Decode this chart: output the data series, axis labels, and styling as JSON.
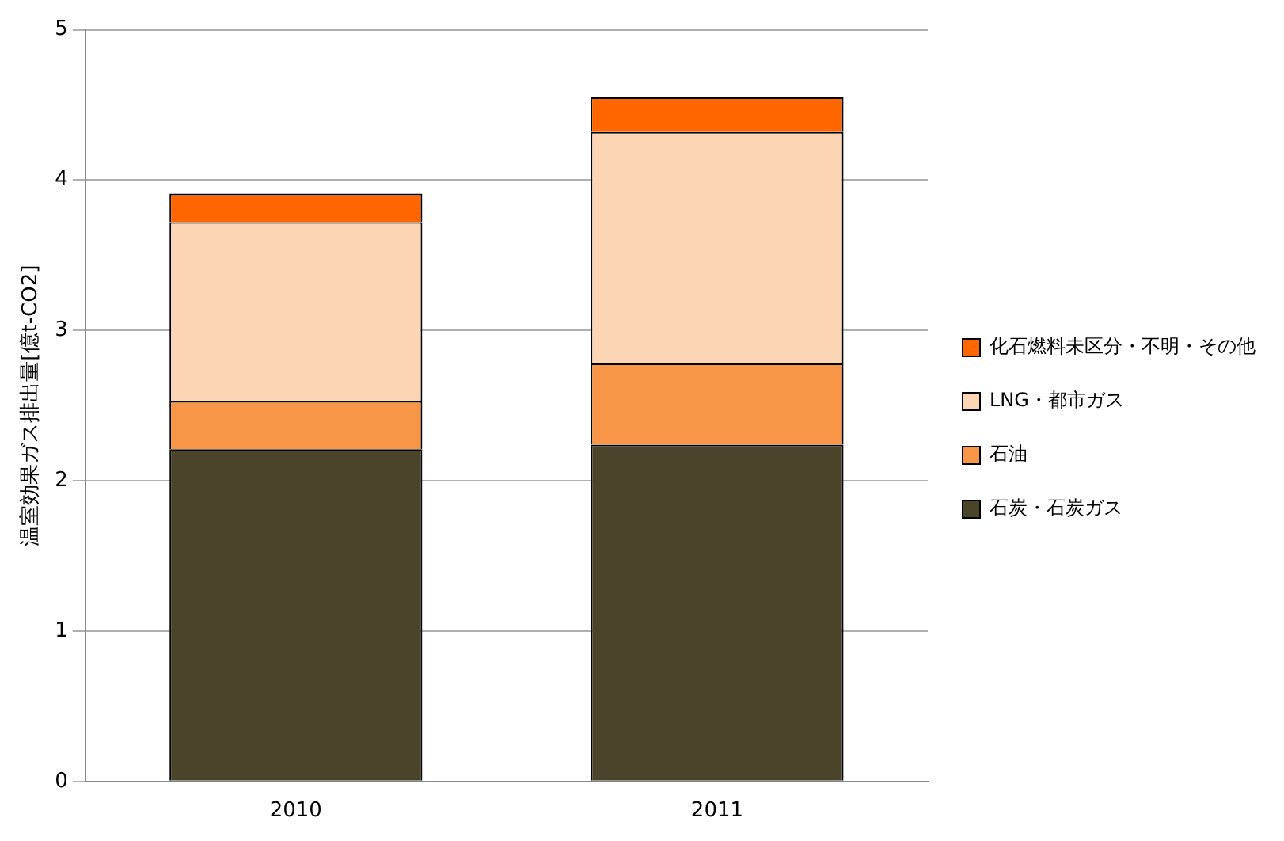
{
  "chart_data": {
    "type": "bar",
    "stacked": true,
    "ylabel": "温室効果ガス排出量[億t-CO2]",
    "categories": [
      "2010",
      "2011"
    ],
    "series": [
      {
        "name": "石炭・石炭ガス",
        "color": "#4a452a",
        "values": [
          2.21,
          2.24
        ]
      },
      {
        "name": "石油",
        "color": "#f79646",
        "values": [
          0.32,
          0.54
        ]
      },
      {
        "name": "LNG・都市ガス",
        "color": "#fcd5b5",
        "values": [
          1.19,
          1.54
        ]
      },
      {
        "name": "化石燃料未区分・不明・その他",
        "color": "#ff6600",
        "values": [
          0.19,
          0.23
        ]
      }
    ],
    "ylim": [
      0,
      5
    ],
    "yticks": [
      0,
      1,
      2,
      3,
      4,
      5
    ],
    "grid": "y",
    "legend": "right"
  }
}
